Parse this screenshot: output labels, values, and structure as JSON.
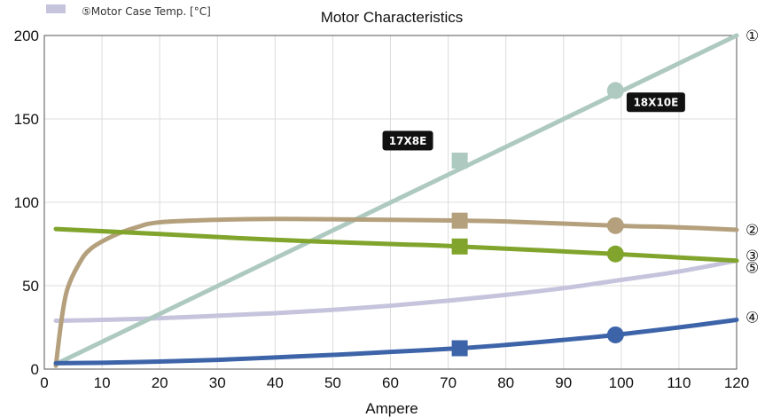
{
  "chart_data": {
    "type": "line",
    "title": "Motor Characteristics",
    "xlabel": "Ampere",
    "ylabel": "",
    "xlim": [
      0,
      120
    ],
    "ylim": [
      0,
      200
    ],
    "xticks": [
      0,
      10,
      20,
      30,
      40,
      50,
      60,
      70,
      80,
      90,
      100,
      110,
      120
    ],
    "yticks": [
      0,
      50,
      100,
      150,
      200
    ],
    "grid": true,
    "legend": {
      "position": "top-left",
      "entries": [
        "⑤Motor Case Temp. [°C]"
      ]
    },
    "series": [
      {
        "id": "1",
        "label": "①",
        "color": "#adc9c0",
        "x": [
          2,
          120
        ],
        "y": [
          3,
          200
        ]
      },
      {
        "id": "2",
        "label": "②",
        "color": "#b4a07c",
        "x": [
          2,
          3,
          4,
          6,
          8,
          12,
          16,
          20,
          30,
          40,
          50,
          60,
          72,
          80,
          99,
          110,
          120
        ],
        "y": [
          2,
          30,
          48,
          63,
          72,
          80,
          85,
          88,
          89.5,
          90,
          89.8,
          89.5,
          89,
          88.5,
          86,
          85,
          83.5
        ]
      },
      {
        "id": "3",
        "label": "③",
        "color": "#80a42c",
        "x": [
          2,
          20,
          40,
          60,
          72,
          99,
          120
        ],
        "y": [
          84,
          81,
          77.5,
          75,
          73.5,
          69,
          65
        ]
      },
      {
        "id": "4",
        "label": "④",
        "color": "#3d64a8",
        "x": [
          2,
          10,
          20,
          30,
          40,
          50,
          60,
          72,
          80,
          90,
          99,
          110,
          120
        ],
        "y": [
          3.5,
          3.8,
          4.5,
          5.5,
          7,
          8.5,
          10.3,
          12.5,
          14.5,
          17.5,
          20.5,
          25,
          29.5
        ]
      },
      {
        "id": "5",
        "label": "⑤",
        "color": "#c6c4dc",
        "x": [
          2,
          10,
          20,
          30,
          40,
          50,
          60,
          70,
          80,
          90,
          99,
          110,
          120
        ],
        "y": [
          29,
          29.5,
          30.5,
          32,
          33.5,
          35.5,
          38,
          41,
          44.5,
          48.5,
          53,
          58.5,
          65
        ]
      }
    ],
    "markers": [
      {
        "series": "1",
        "x": 72,
        "y": 125,
        "shape": "square"
      },
      {
        "series": "1",
        "x": 99,
        "y": 167,
        "shape": "circle"
      },
      {
        "series": "2",
        "x": 72,
        "y": 89,
        "shape": "square"
      },
      {
        "series": "2",
        "x": 99,
        "y": 86,
        "shape": "circle"
      },
      {
        "series": "3",
        "x": 72,
        "y": 73.5,
        "shape": "square"
      },
      {
        "series": "3",
        "x": 99,
        "y": 69,
        "shape": "circle"
      },
      {
        "series": "4",
        "x": 72,
        "y": 12.5,
        "shape": "square"
      },
      {
        "series": "4",
        "x": 99,
        "y": 20.5,
        "shape": "circle"
      }
    ],
    "annotations": [
      {
        "text": "17X8E",
        "x": 63,
        "y": 137
      },
      {
        "text": "18X10E",
        "x": 106,
        "y": 160
      }
    ]
  }
}
